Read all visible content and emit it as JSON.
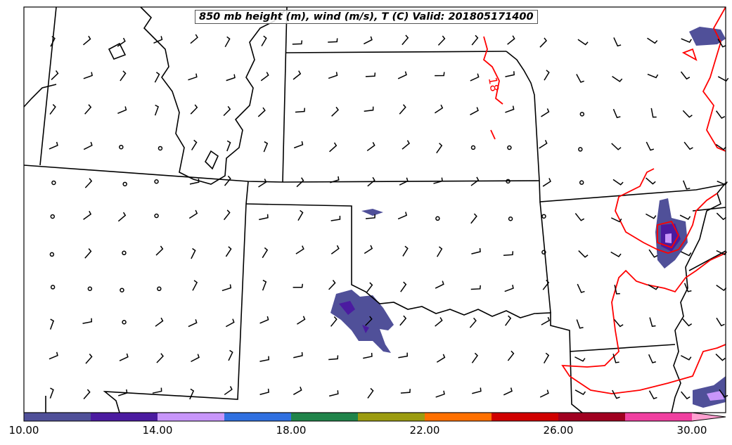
{
  "title": "850 mb height (m), wind (m/s), T (C) Valid: 201805171400",
  "contour_label": "18",
  "colorbar": {
    "colors": [
      "#505099",
      "#4b1ba0",
      "#c896fa",
      "#3070e0",
      "#20844a",
      "#9c9c10",
      "#ff7000",
      "#d00000",
      "#a00020",
      "#f040a0",
      "#ffa0d0"
    ],
    "ticks": [
      "10.00",
      "14.00",
      "18.00",
      "22.00",
      "26.00",
      "30.00"
    ],
    "min": 10,
    "max": 30,
    "step": 2,
    "extend": "max"
  },
  "colors": {
    "temperature_contour": "#ff0000",
    "borders": "#000000"
  }
}
